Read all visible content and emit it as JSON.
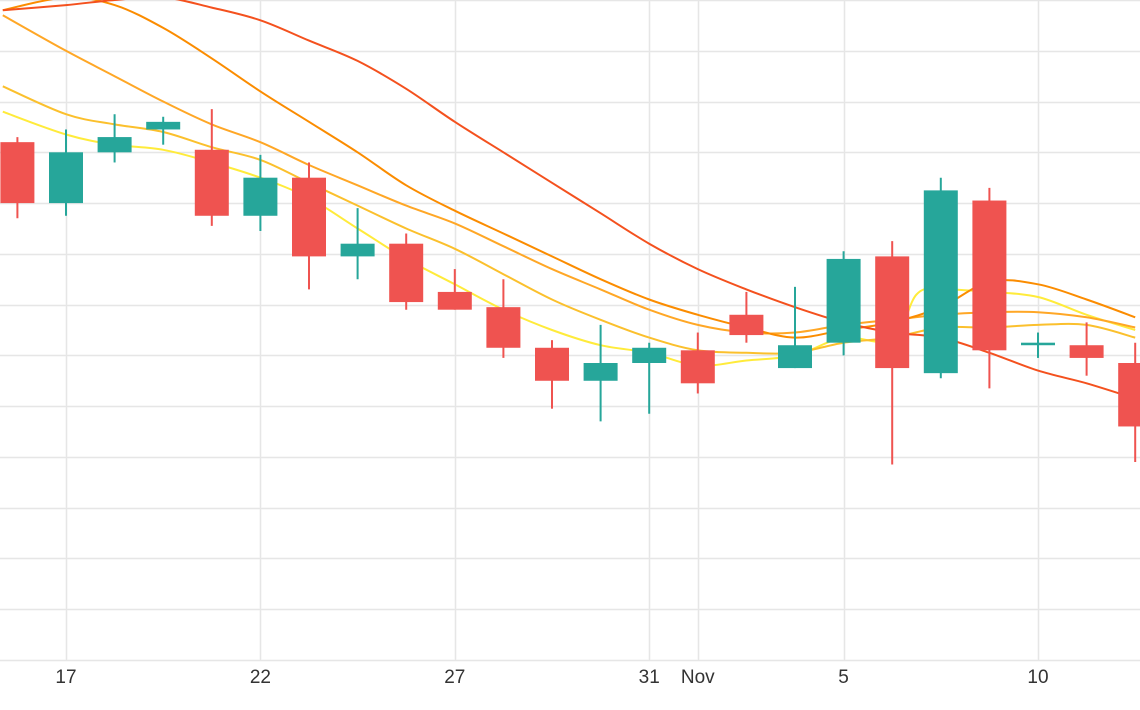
{
  "chart_data": {
    "type": "candlestick",
    "x_axis": {
      "ticks": [
        {
          "label": "17",
          "day": 0
        },
        {
          "label": "22",
          "day": 4
        },
        {
          "label": "27",
          "day": 8
        },
        {
          "label": "31",
          "day": 12
        },
        {
          "label": "Nov",
          "day": 13
        },
        {
          "label": "5",
          "day": 16
        },
        {
          "label": "10",
          "day": 20
        }
      ]
    },
    "y_axis": {
      "range": [
        0,
        13
      ],
      "gridlines": 13
    },
    "grid": true,
    "colors": {
      "up": "#26a69a",
      "down": "#ef5350",
      "grid": "#e6e6e6",
      "axis_text": "#333333"
    },
    "candles": [
      {
        "day": -1,
        "open": 10.2,
        "close": 9.0,
        "high": 10.3,
        "low": 8.7
      },
      {
        "day": 0,
        "open": 9.0,
        "close": 10.0,
        "high": 10.45,
        "low": 8.75
      },
      {
        "day": 1,
        "open": 10.0,
        "close": 10.3,
        "high": 10.75,
        "low": 9.8
      },
      {
        "day": 2,
        "open": 10.45,
        "close": 10.6,
        "high": 10.7,
        "low": 10.15
      },
      {
        "day": 3,
        "open": 10.05,
        "close": 8.75,
        "high": 10.85,
        "low": 8.55
      },
      {
        "day": 4,
        "open": 8.75,
        "close": 9.5,
        "high": 9.95,
        "low": 8.45
      },
      {
        "day": 5,
        "open": 9.5,
        "close": 7.95,
        "high": 9.8,
        "low": 7.3
      },
      {
        "day": 6,
        "open": 7.95,
        "close": 8.2,
        "high": 8.9,
        "low": 7.5
      },
      {
        "day": 7,
        "open": 8.2,
        "close": 7.05,
        "high": 8.4,
        "low": 6.9
      },
      {
        "day": 8,
        "open": 7.25,
        "close": 6.9,
        "high": 7.7,
        "low": 6.9
      },
      {
        "day": 9,
        "open": 6.95,
        "close": 6.15,
        "high": 7.5,
        "low": 5.95
      },
      {
        "day": 10,
        "open": 6.15,
        "close": 5.5,
        "high": 6.3,
        "low": 4.95
      },
      {
        "day": 11,
        "open": 5.5,
        "close": 5.85,
        "high": 6.6,
        "low": 4.7
      },
      {
        "day": 12,
        "open": 5.85,
        "close": 6.15,
        "high": 6.25,
        "low": 4.85
      },
      {
        "day": 13,
        "open": 6.1,
        "close": 5.45,
        "high": 6.45,
        "low": 5.25
      },
      {
        "day": 14,
        "open": 6.8,
        "close": 6.4,
        "high": 7.25,
        "low": 6.25
      },
      {
        "day": 15,
        "open": 5.75,
        "close": 6.2,
        "high": 7.35,
        "low": 5.75
      },
      {
        "day": 16,
        "open": 6.25,
        "close": 7.9,
        "high": 8.05,
        "low": 6.0
      },
      {
        "day": 17,
        "open": 7.95,
        "close": 5.75,
        "high": 8.25,
        "low": 3.85
      },
      {
        "day": 18,
        "open": 5.65,
        "close": 9.25,
        "high": 9.5,
        "low": 5.55
      },
      {
        "day": 19,
        "open": 9.05,
        "close": 6.1,
        "high": 9.3,
        "low": 5.35
      },
      {
        "day": 20,
        "open": 6.2,
        "close": 6.25,
        "high": 6.45,
        "low": 5.95
      },
      {
        "day": 21,
        "open": 6.2,
        "close": 5.95,
        "high": 6.65,
        "low": 5.6
      },
      {
        "day": 22,
        "open": 5.85,
        "close": 4.6,
        "high": 6.25,
        "low": 3.9
      }
    ],
    "series": [
      {
        "color": "#ffeb3b",
        "width": 2,
        "points": [
          [
            -1.3,
            10.8
          ],
          [
            0,
            10.35
          ],
          [
            1,
            10.15
          ],
          [
            2,
            10.05
          ],
          [
            3,
            9.8
          ],
          [
            4,
            9.5
          ],
          [
            5,
            9.1
          ],
          [
            6,
            8.5
          ],
          [
            7,
            7.9
          ],
          [
            8,
            7.4
          ],
          [
            9,
            6.9
          ],
          [
            10,
            6.5
          ],
          [
            11,
            6.2
          ],
          [
            12,
            6.05
          ],
          [
            13,
            5.8
          ],
          [
            14,
            5.9
          ],
          [
            15,
            6.0
          ],
          [
            16,
            6.35
          ],
          [
            17,
            6.3
          ],
          [
            17.5,
            7.2
          ],
          [
            18,
            7.3
          ],
          [
            19,
            7.25
          ],
          [
            20,
            7.15
          ],
          [
            21,
            6.8
          ],
          [
            22,
            6.5
          ]
        ]
      },
      {
        "color": "#fbc02d",
        "width": 2,
        "points": [
          [
            -1.3,
            11.3
          ],
          [
            0,
            10.75
          ],
          [
            1,
            10.55
          ],
          [
            2,
            10.4
          ],
          [
            3,
            10.1
          ],
          [
            4,
            9.85
          ],
          [
            5,
            9.4
          ],
          [
            6,
            8.95
          ],
          [
            7,
            8.5
          ],
          [
            8,
            8.1
          ],
          [
            9,
            7.6
          ],
          [
            10,
            7.1
          ],
          [
            11,
            6.7
          ],
          [
            12,
            6.35
          ],
          [
            13,
            6.1
          ],
          [
            14,
            6.05
          ],
          [
            15,
            6.05
          ],
          [
            16,
            6.25
          ],
          [
            17,
            6.35
          ],
          [
            18,
            6.55
          ],
          [
            19,
            6.55
          ],
          [
            20,
            6.6
          ],
          [
            21,
            6.6
          ],
          [
            22,
            6.35
          ]
        ]
      },
      {
        "color": "#ffa726",
        "width": 2,
        "points": [
          [
            -1.3,
            12.7
          ],
          [
            0,
            12.0
          ],
          [
            1,
            11.5
          ],
          [
            2,
            11.0
          ],
          [
            3,
            10.55
          ],
          [
            4,
            10.2
          ],
          [
            5,
            9.75
          ],
          [
            6,
            9.35
          ],
          [
            7,
            8.95
          ],
          [
            8,
            8.6
          ],
          [
            9,
            8.15
          ],
          [
            10,
            7.7
          ],
          [
            11,
            7.3
          ],
          [
            12,
            6.9
          ],
          [
            13,
            6.6
          ],
          [
            14,
            6.45
          ],
          [
            15,
            6.45
          ],
          [
            16,
            6.6
          ],
          [
            17,
            6.7
          ],
          [
            18,
            6.8
          ],
          [
            19,
            6.85
          ],
          [
            20,
            6.85
          ],
          [
            21,
            6.75
          ],
          [
            22,
            6.55
          ]
        ]
      },
      {
        "color": "#fb8c00",
        "width": 2,
        "points": [
          [
            -1.3,
            12.8
          ],
          [
            0,
            13.05
          ],
          [
            1,
            12.9
          ],
          [
            2,
            12.45
          ],
          [
            3,
            11.85
          ],
          [
            4,
            11.2
          ],
          [
            5,
            10.6
          ],
          [
            6,
            10.0
          ],
          [
            7,
            9.35
          ],
          [
            8,
            8.85
          ],
          [
            9,
            8.4
          ],
          [
            10,
            7.95
          ],
          [
            11,
            7.5
          ],
          [
            12,
            7.1
          ],
          [
            13,
            6.8
          ],
          [
            14,
            6.55
          ],
          [
            15,
            6.35
          ],
          [
            16,
            6.5
          ],
          [
            17,
            6.65
          ],
          [
            18,
            6.95
          ],
          [
            19,
            7.45
          ],
          [
            20,
            7.4
          ],
          [
            21,
            7.1
          ],
          [
            22,
            6.75
          ]
        ]
      },
      {
        "color": "#f4511e",
        "width": 2,
        "points": [
          [
            -1.3,
            12.8
          ],
          [
            0,
            12.9
          ],
          [
            1,
            13.0
          ],
          [
            2,
            13.05
          ],
          [
            3,
            12.85
          ],
          [
            4,
            12.6
          ],
          [
            5,
            12.2
          ],
          [
            6,
            11.8
          ],
          [
            7,
            11.25
          ],
          [
            8,
            10.6
          ],
          [
            9,
            10.0
          ],
          [
            10,
            9.4
          ],
          [
            11,
            8.8
          ],
          [
            12,
            8.2
          ],
          [
            13,
            7.7
          ],
          [
            14,
            7.3
          ],
          [
            15,
            6.95
          ],
          [
            16,
            6.65
          ],
          [
            17,
            6.45
          ],
          [
            18,
            6.35
          ],
          [
            19,
            6.05
          ],
          [
            20,
            5.7
          ],
          [
            21,
            5.45
          ],
          [
            22,
            5.15
          ]
        ]
      }
    ]
  }
}
